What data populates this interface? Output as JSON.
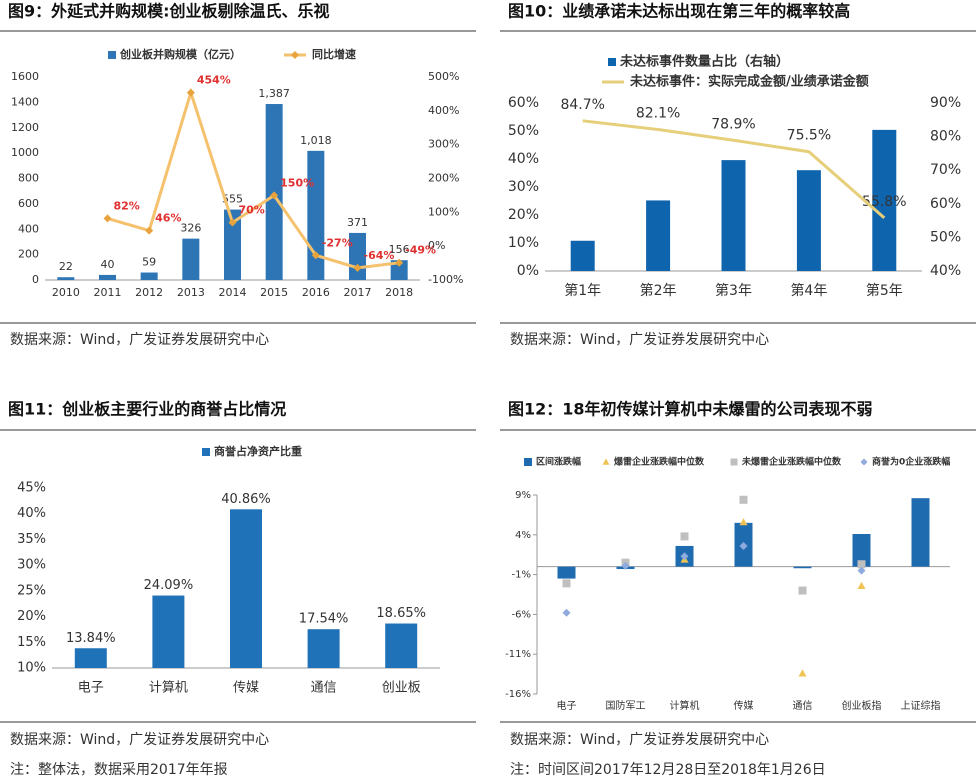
{
  "chart_data": [
    {
      "type": "combo",
      "title": "图9：外延式并购规模:创业板剔除温氏、乐视",
      "categories": [
        "2010",
        "2011",
        "2012",
        "2013",
        "2014",
        "2015",
        "2016",
        "2017",
        "2018"
      ],
      "series": [
        {
          "name": "创业板并购规模（亿元）",
          "type": "bar",
          "color": "#2e75b6",
          "label_color": "#333333",
          "values": [
            22,
            40,
            59,
            326,
            555,
            1387,
            1018,
            371,
            156
          ],
          "value_labels": [
            "22",
            "40",
            "59",
            "326",
            "555",
            "1,387",
            "1,018",
            "371",
            "156"
          ]
        },
        {
          "name": "同比增速",
          "type": "line",
          "axis": "y2",
          "color": "#f5c16c",
          "marker": "diamond",
          "marker_color": "#e8a33c",
          "label_color": "#e03030",
          "values": [
            null,
            82,
            46,
            454,
            70,
            150,
            -27,
            -64,
            -49
          ],
          "value_labels": [
            null,
            "82%",
            "46%",
            "454%",
            "70%",
            "150%",
            "-27%",
            "-64%",
            "-49%"
          ]
        }
      ],
      "ylim": [
        0,
        1600
      ],
      "yticks": [
        0,
        200,
        400,
        600,
        800,
        1000,
        1200,
        1400,
        1600
      ],
      "y2lim": [
        -100,
        500
      ],
      "y2ticks": [
        {
          "value": -100,
          "label": "-100%"
        },
        {
          "value": 0,
          "label": "0%"
        },
        {
          "value": 100,
          "label": "100%"
        },
        {
          "value": 200,
          "label": "200%"
        },
        {
          "value": 300,
          "label": "300%"
        },
        {
          "value": 400,
          "label": "400%"
        },
        {
          "value": 500,
          "label": "500%"
        }
      ],
      "source": "数据来源：Wind，广发证券发展研究中心"
    },
    {
      "type": "combo",
      "title": "图10：业绩承诺未达标出现在第三年的概率较高",
      "categories": [
        "第1年",
        "第2年",
        "第3年",
        "第4年",
        "第5年"
      ],
      "series": [
        {
          "name": "未达标事件数量占比（右轴）",
          "type": "bar",
          "axis": "y2",
          "color": "#0e64ad",
          "values": [
            49,
            61,
            73,
            70,
            82
          ]
        },
        {
          "name": "未达标事件：实际完成金额/业绩承诺金额",
          "type": "line",
          "axis": "y2",
          "color": "#e6cf7a",
          "label_color": "#333333",
          "values": [
            84.7,
            82.1,
            78.9,
            75.5,
            55.8
          ],
          "value_labels": [
            "84.7%",
            "82.1%",
            "78.9%",
            "75.5%",
            "55.8%"
          ]
        }
      ],
      "ylim": [
        0,
        60
      ],
      "yticks": [
        {
          "value": 0,
          "label": "0%"
        },
        {
          "value": 10,
          "label": "10%"
        },
        {
          "value": 20,
          "label": "20%"
        },
        {
          "value": 30,
          "label": "30%"
        },
        {
          "value": 40,
          "label": "40%"
        },
        {
          "value": 50,
          "label": "50%"
        },
        {
          "value": 60,
          "label": "60%"
        }
      ],
      "y2lim": [
        40,
        90
      ],
      "y2ticks": [
        {
          "value": 40,
          "label": "40%"
        },
        {
          "value": 50,
          "label": "50%"
        },
        {
          "value": 60,
          "label": "60%"
        },
        {
          "value": 70,
          "label": "70%"
        },
        {
          "value": 80,
          "label": "80%"
        },
        {
          "value": 90,
          "label": "90%"
        }
      ],
      "source": "数据来源：Wind，广发证券发展研究中心"
    },
    {
      "type": "combo",
      "title": "图11：创业板主要行业的商誉占比情况",
      "categories": [
        "电子",
        "计算机",
        "传媒",
        "通信",
        "创业板"
      ],
      "series": [
        {
          "name": "商誉占净资产比重",
          "type": "bar",
          "color": "#2072b8",
          "label_color": "#333333",
          "values": [
            13.84,
            24.09,
            40.86,
            17.54,
            18.65
          ],
          "value_labels": [
            "13.84%",
            "24.09%",
            "40.86%",
            "17.54%",
            "18.65%"
          ]
        }
      ],
      "ylim": [
        10,
        45
      ],
      "yticks": [
        {
          "value": 10,
          "label": "10%"
        },
        {
          "value": 15,
          "label": "15%"
        },
        {
          "value": 20,
          "label": "20%"
        },
        {
          "value": 25,
          "label": "25%"
        },
        {
          "value": 30,
          "label": "30%"
        },
        {
          "value": 35,
          "label": "35%"
        },
        {
          "value": 40,
          "label": "40%"
        },
        {
          "value": 45,
          "label": "45%"
        }
      ],
      "source": "数据来源：Wind，广发证券发展研究中心",
      "note": "注：整体法，数据采用2017年年报"
    },
    {
      "type": "combo",
      "title": "图12：18年初传媒计算机中未爆雷的公司表现不弱",
      "categories": [
        "电子",
        "国防军工",
        "计算机",
        "传媒",
        "通信",
        "创业板指",
        "上证综指"
      ],
      "series": [
        {
          "name": "区间涨跌幅",
          "type": "bar",
          "color": "#1f6bb0",
          "values": [
            -1.5,
            -0.3,
            2.6,
            5.5,
            -0.2,
            4.1,
            8.6
          ]
        },
        {
          "name": "爆雷企业涨跌幅中位数",
          "type": "scatter",
          "marker": "triangle",
          "color": "#f0c454",
          "values": [
            null,
            null,
            0.9,
            5.6,
            -13.4,
            -2.4,
            null
          ]
        },
        {
          "name": "未爆雷企业涨跌幅中位数",
          "type": "scatter",
          "marker": "square",
          "color": "#bfbfbf",
          "values": [
            -2.1,
            0.5,
            3.8,
            8.4,
            -3,
            0.3,
            null
          ]
        },
        {
          "name": "商誉为0企业涨跌幅",
          "type": "scatter",
          "marker": "diamond",
          "color": "#8faadc",
          "values": [
            -5.8,
            0.1,
            1.3,
            2.6,
            null,
            -0.5,
            null
          ]
        }
      ],
      "ylim": [
        -16,
        9
      ],
      "yticks": [
        {
          "value": -16,
          "label": "-16%"
        },
        {
          "value": -11,
          "label": "-11%"
        },
        {
          "value": -6,
          "label": "-6%"
        },
        {
          "value": -1,
          "label": "-1%"
        },
        {
          "value": 4,
          "label": "4%"
        },
        {
          "value": 9,
          "label": "9%"
        }
      ],
      "source": "数据来源：Wind，广发证券发展研究中心",
      "note": "注：时间区间2017年12月28日至2018年1月26日"
    }
  ]
}
